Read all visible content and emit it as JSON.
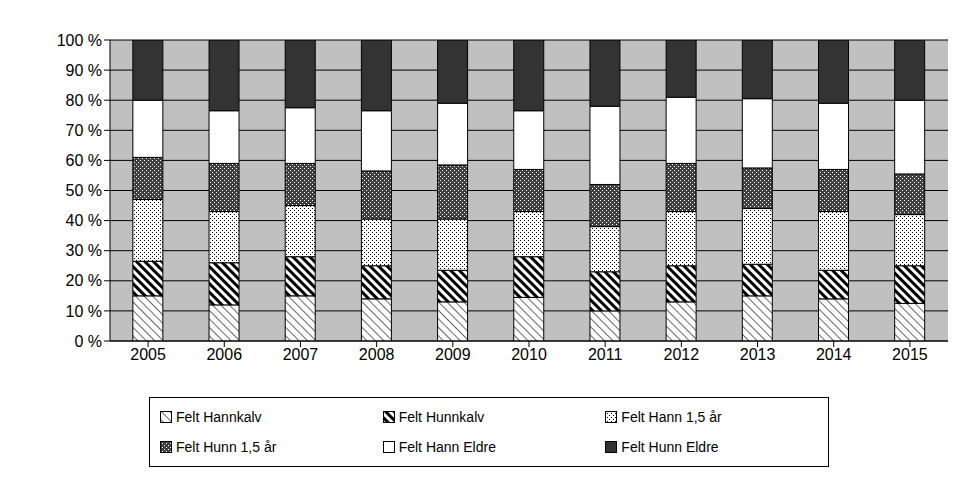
{
  "chart_data": {
    "type": "bar",
    "stacked": true,
    "grid": true,
    "legend": "bottom",
    "categories": [
      "2005",
      "2006",
      "2007",
      "2008",
      "2009",
      "2010",
      "2011",
      "2012",
      "2013",
      "2014",
      "2015"
    ],
    "ylim": [
      0,
      100
    ],
    "yticks": [
      {
        "value": 0,
        "label": "0 %"
      },
      {
        "value": 10,
        "label": "10 %"
      },
      {
        "value": 20,
        "label": "20 %"
      },
      {
        "value": 30,
        "label": "30 %"
      },
      {
        "value": 40,
        "label": "40 %"
      },
      {
        "value": 50,
        "label": "50 %"
      },
      {
        "value": 60,
        "label": "60 %"
      },
      {
        "value": 70,
        "label": "70 %"
      },
      {
        "value": 80,
        "label": "80 %"
      },
      {
        "value": 90,
        "label": "90 %"
      },
      {
        "value": 100,
        "label": "100 %"
      }
    ],
    "series": [
      {
        "name": "Felt Hannkalv",
        "color": "#000000",
        "values": [
          15,
          12,
          15,
          14,
          13,
          14.5,
          10,
          13,
          15,
          14,
          12.5
        ]
      },
      {
        "name": "Felt Hunnkalv",
        "color": "#000000",
        "values": [
          11.5,
          14,
          13,
          11,
          10.5,
          13.5,
          13,
          12,
          10.5,
          9.5,
          12.5
        ]
      },
      {
        "name": "Felt Hann 1,5 år",
        "color": "#000000",
        "values": [
          20.5,
          17,
          17,
          15.5,
          17,
          15,
          15,
          18,
          18.5,
          19.5,
          17
        ]
      },
      {
        "name": "Felt Hunn 1,5 år",
        "color": "#404040",
        "values": [
          14,
          16,
          14,
          16,
          18,
          14,
          14,
          16,
          13.5,
          14,
          13.5
        ]
      },
      {
        "name": "Felt Hann Eldre",
        "color": "#ffffff",
        "values": [
          19,
          17.5,
          18.5,
          20,
          20.5,
          19.5,
          26,
          22,
          23,
          22,
          24.5
        ]
      },
      {
        "name": "Felt Hunn Eldre",
        "color": "#333333",
        "values": [
          20,
          23.5,
          22.5,
          23.5,
          21,
          23.5,
          22,
          19,
          19.5,
          21,
          20
        ]
      }
    ]
  }
}
